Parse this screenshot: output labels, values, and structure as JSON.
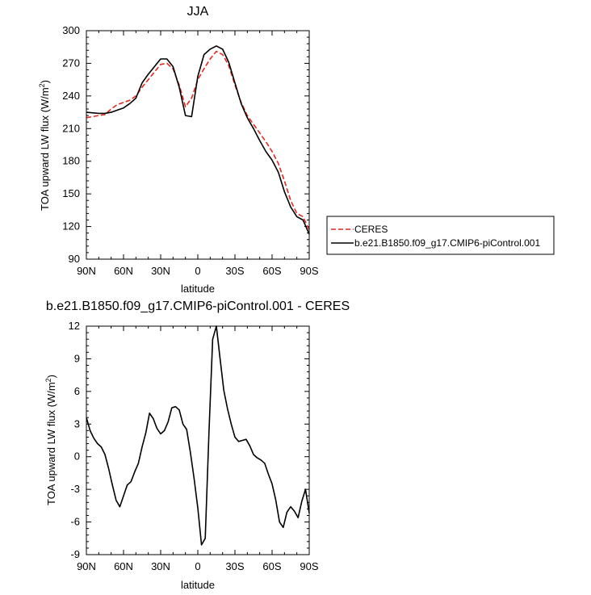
{
  "chart_data": [
    {
      "type": "line",
      "title": "JJA",
      "xlabel": "latitude",
      "ylabel": "TOA upward LW flux (W/m",
      "ylabel_sup": "2",
      "ylabel_end": ")",
      "x_tick_labels": [
        "90N",
        "60N",
        "30N",
        "0",
        "30S",
        "60S",
        "90S"
      ],
      "x_tick_values": [
        90,
        60,
        30,
        0,
        -30,
        -60,
        -90
      ],
      "xlim": [
        90,
        -90
      ],
      "y_ticks": [
        90,
        120,
        150,
        180,
        210,
        240,
        270,
        300
      ],
      "ylim": [
        90,
        300
      ],
      "legend": {
        "placement": "right",
        "entries": [
          "CERES",
          "b.e21.B1850.f09_g17.CMIP6-piControl.001"
        ]
      },
      "series": [
        {
          "name": "CERES",
          "color": "#e8261c",
          "dash": "dashed",
          "x": [
            90,
            80,
            75,
            70,
            65,
            60,
            55,
            50,
            45,
            40,
            35,
            30,
            25,
            20,
            15,
            10,
            5,
            0,
            -5,
            -10,
            -15,
            -20,
            -25,
            -30,
            -35,
            -40,
            -45,
            -50,
            -55,
            -60,
            -65,
            -70,
            -75,
            -80,
            -85,
            -90
          ],
          "y": [
            220,
            222,
            223,
            228,
            232,
            234,
            236,
            240,
            248,
            255,
            262,
            269,
            270,
            265,
            250,
            230,
            238,
            255,
            265,
            274,
            281,
            278,
            268,
            250,
            234,
            222,
            214,
            206,
            198,
            189,
            178,
            162,
            144,
            132,
            129,
            117
          ]
        },
        {
          "name": "b.e21.B1850.f09_g17.CMIP6-piControl.001",
          "color": "#000000",
          "dash": "solid",
          "x": [
            90,
            80,
            75,
            70,
            65,
            60,
            55,
            50,
            45,
            40,
            35,
            30,
            25,
            20,
            15,
            10,
            5,
            0,
            -5,
            -10,
            -15,
            -20,
            -25,
            -30,
            -35,
            -40,
            -45,
            -50,
            -55,
            -60,
            -65,
            -70,
            -75,
            -80,
            -85,
            -90
          ],
          "y": [
            225,
            224,
            224,
            225,
            227,
            229,
            233,
            238,
            252,
            260,
            267,
            274,
            274,
            267,
            248,
            222,
            221,
            258,
            278,
            283,
            286,
            283,
            271,
            252,
            233,
            220,
            210,
            199,
            189,
            181,
            170,
            152,
            138,
            129,
            126,
            113
          ]
        }
      ]
    },
    {
      "type": "line",
      "title": "b.e21.B1850.f09_g17.CMIP6-piControl.001 - CERES",
      "xlabel": "latitude",
      "ylabel": "TOA upward LW flux (W/m",
      "ylabel_sup": "2",
      "ylabel_end": ")",
      "x_tick_labels": [
        "90N",
        "60N",
        "30N",
        "0",
        "30S",
        "60S",
        "90S"
      ],
      "x_tick_values": [
        90,
        60,
        30,
        0,
        -30,
        -60,
        -90
      ],
      "xlim": [
        90,
        -90
      ],
      "y_ticks": [
        -9,
        -6,
        -3,
        0,
        3,
        6,
        9,
        12
      ],
      "ylim": [
        -9,
        12
      ],
      "series": [
        {
          "color": "#000000",
          "dash": "solid",
          "x": [
            90,
            87,
            84,
            81,
            78,
            75,
            72,
            69,
            66,
            63,
            60,
            57,
            54,
            51,
            48,
            45,
            42,
            39,
            36,
            33,
            30,
            27,
            24,
            21,
            18,
            15,
            12,
            9,
            6,
            3,
            0,
            -3,
            -6,
            -9,
            -12,
            -15,
            -18,
            -21,
            -24,
            -27,
            -30,
            -33,
            -36,
            -39,
            -42,
            -45,
            -48,
            -51,
            -54,
            -57,
            -60,
            -63,
            -66,
            -69,
            -72,
            -75,
            -78,
            -81,
            -84,
            -87,
            -90
          ],
          "y": [
            3.6,
            2.4,
            1.7,
            1.2,
            0.9,
            0.2,
            -1.1,
            -2.6,
            -4.0,
            -4.6,
            -3.6,
            -2.6,
            -2.3,
            -1.4,
            -0.6,
            0.9,
            2.2,
            4.0,
            3.5,
            2.6,
            2.1,
            2.4,
            3.2,
            4.5,
            4.6,
            4.3,
            3.0,
            2.5,
            0.4,
            -2.0,
            -4.7,
            -8.1,
            -7.5,
            2.2,
            10.8,
            12.0,
            9.0,
            6.1,
            4.4,
            3.0,
            1.8,
            1.4,
            1.5,
            1.6,
            1.0,
            0.2,
            -0.1,
            -0.3,
            -0.6,
            -1.6,
            -2.5,
            -4.0,
            -6.0,
            -6.5,
            -5.1,
            -4.6,
            -5.0,
            -5.6,
            -4.1,
            -3.0,
            -5.2
          ]
        }
      ]
    }
  ]
}
